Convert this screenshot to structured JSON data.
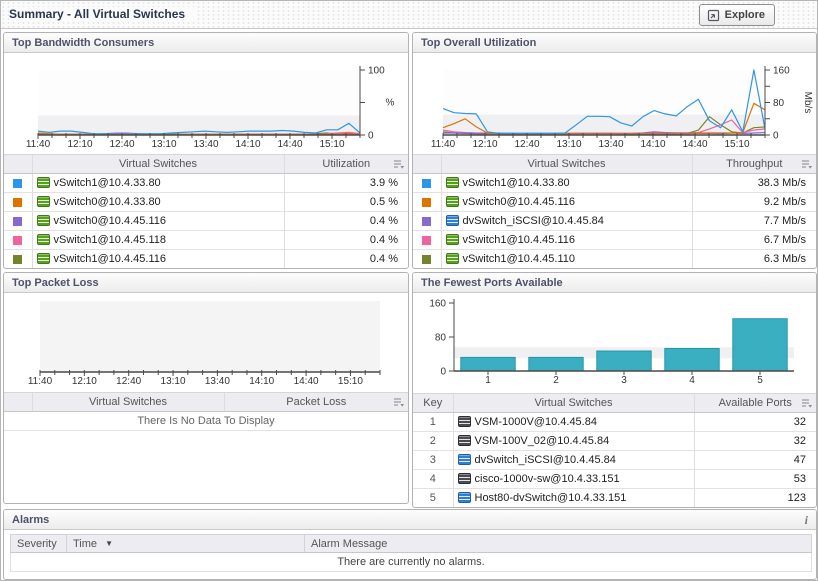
{
  "header": {
    "title": "Summary - All Virtual Switches",
    "explore_label": "Explore"
  },
  "panels": {
    "bandwidth": {
      "title": "Top Bandwidth Consumers",
      "headers": [
        "",
        "Virtual Switches",
        "Utilization"
      ],
      "rows": [
        {
          "swatch": "#2e96e8",
          "icon": "vswitch-green",
          "name": "vSwitch1@10.4.33.80",
          "value": "3.9 %"
        },
        {
          "swatch": "#df7300",
          "icon": "vswitch-green",
          "name": "vSwitch0@10.4.33.80",
          "value": "0.5 %"
        },
        {
          "swatch": "#8668ce",
          "icon": "vswitch-green",
          "name": "vSwitch0@10.4.45.116",
          "value": "0.4 %"
        },
        {
          "swatch": "#f0639c",
          "icon": "vswitch-green",
          "name": "vSwitch1@10.4.45.118",
          "value": "0.4 %"
        },
        {
          "swatch": "#77832c",
          "icon": "vswitch-green",
          "name": "vSwitch1@10.4.45.116",
          "value": "0.4 %"
        }
      ]
    },
    "utilization": {
      "title": "Top Overall Utilization",
      "headers": [
        "",
        "Virtual Switches",
        "Throughput"
      ],
      "rows": [
        {
          "swatch": "#2e96e8",
          "icon": "vswitch-green",
          "name": "vSwitch1@10.4.33.80",
          "value": "38.3 Mb/s"
        },
        {
          "swatch": "#df7300",
          "icon": "vswitch-green",
          "name": "vSwitch0@10.4.45.116",
          "value": "9.2 Mb/s"
        },
        {
          "swatch": "#8668ce",
          "icon": "dvswitch-blue",
          "name": "dvSwitch_iSCSI@10.4.45.84",
          "value": "7.7 Mb/s"
        },
        {
          "swatch": "#f0639c",
          "icon": "vswitch-green",
          "name": "vSwitch1@10.4.45.116",
          "value": "6.7 Mb/s"
        },
        {
          "swatch": "#77832c",
          "icon": "vswitch-green",
          "name": "vSwitch1@10.4.45.110",
          "value": "6.3 Mb/s"
        }
      ]
    },
    "packetloss": {
      "title": "Top Packet Loss",
      "headers": [
        "",
        "Virtual Switches",
        "Packet Loss"
      ],
      "empty_message": "There Is No Data To Display"
    },
    "ports": {
      "title": "The Fewest Ports Available",
      "headers": [
        "Key",
        "Virtual Switches",
        "Available Ports"
      ],
      "rows": [
        {
          "key": "1",
          "icon": "cisco-dark",
          "name": "VSM-1000V@10.4.45.84",
          "value": "32"
        },
        {
          "key": "2",
          "icon": "cisco-dark",
          "name": "VSM-100V_02@10.4.45.84",
          "value": "32"
        },
        {
          "key": "3",
          "icon": "dvswitch-blue",
          "name": "dvSwitch_iSCSI@10.4.45.84",
          "value": "47"
        },
        {
          "key": "4",
          "icon": "cisco-dark",
          "name": "cisco-1000v-sw@10.4.33.151",
          "value": "53"
        },
        {
          "key": "5",
          "icon": "dvswitch-blue",
          "name": "Host80-dvSwitch@10.4.33.151",
          "value": "123"
        }
      ]
    },
    "alarms": {
      "title": "Alarms",
      "info_label": "i",
      "headers": [
        "Severity",
        "Time",
        "Alarm Message"
      ],
      "empty_message": "There are currently no alarms."
    }
  },
  "chart_data": [
    {
      "id": "bw",
      "type": "line",
      "title": "Top Bandwidth Consumers",
      "ylabel": "%",
      "ylim": [
        0,
        100
      ],
      "band": [
        0,
        30
      ],
      "yticks": [
        {
          "v": 0,
          "label": "0"
        },
        {
          "v": 50,
          "label": ""
        },
        {
          "v": 100,
          "label": "100"
        }
      ],
      "x_tick_labels": [
        "11:40",
        "12:10",
        "12:40",
        "13:10",
        "13:40",
        "14:10",
        "14:40",
        "15:10"
      ],
      "x_range_minutes": 230,
      "x_tick_step_minutes": 30,
      "x_minor_step_minutes": 10,
      "series": [
        {
          "name": "vSwitch1@10.4.45.116",
          "color": "#77832c",
          "values": [
            1,
            1,
            1,
            1,
            1,
            1,
            1,
            1,
            1,
            1,
            1,
            1,
            1,
            1,
            1,
            1,
            1,
            1,
            1,
            1,
            1,
            1,
            1,
            1,
            1,
            2,
            3,
            1,
            3,
            2
          ]
        },
        {
          "name": "vSwitch1@10.4.45.118",
          "color": "#f0639c",
          "values": [
            2,
            1,
            1,
            1,
            1,
            1,
            2,
            3,
            3,
            2,
            1,
            1,
            1,
            1,
            1,
            1,
            1,
            1,
            1,
            1,
            1,
            1,
            1,
            1,
            1,
            1,
            2,
            3,
            4,
            2
          ]
        },
        {
          "name": "vSwitch0@10.4.45.116",
          "color": "#8668ce",
          "values": [
            1,
            1,
            1,
            1,
            1,
            1,
            1,
            1,
            1,
            1,
            1,
            1,
            1,
            1,
            1,
            1,
            1,
            1,
            1,
            1,
            1,
            1,
            1,
            1,
            1,
            1,
            1,
            1,
            1,
            1
          ]
        },
        {
          "name": "vSwitch0@10.4.33.80",
          "color": "#df7300",
          "values": [
            3,
            2,
            1,
            1,
            1,
            1,
            1,
            1,
            1,
            1,
            1,
            1,
            1,
            1,
            1,
            1,
            1,
            1,
            1,
            1,
            1,
            1,
            1,
            1,
            1,
            1,
            1,
            1,
            2,
            1
          ]
        },
        {
          "name": "vSwitch1@10.4.33.80",
          "color": "#2e96e8",
          "values": [
            6,
            4,
            6,
            6,
            4,
            2,
            2,
            2,
            2,
            2,
            2,
            2,
            3,
            4,
            5,
            6,
            5,
            4,
            5,
            6,
            6,
            6,
            7,
            6,
            4,
            3,
            8,
            8,
            18,
            3
          ]
        }
      ]
    },
    {
      "id": "ut",
      "type": "line",
      "title": "Top Overall Utilization",
      "ylabel": "Mb/s",
      "ylim": [
        0,
        160
      ],
      "band": [
        0,
        50
      ],
      "yticks": [
        {
          "v": 0,
          "label": "0"
        },
        {
          "v": 40,
          "label": ""
        },
        {
          "v": 80,
          "label": "80"
        },
        {
          "v": 120,
          "label": ""
        },
        {
          "v": 160,
          "label": "160"
        }
      ],
      "x_tick_labels": [
        "11:40",
        "12:10",
        "12:40",
        "13:10",
        "13:40",
        "14:10",
        "14:40",
        "15:10"
      ],
      "x_range_minutes": 230,
      "x_tick_step_minutes": 30,
      "x_minor_step_minutes": 10,
      "series": [
        {
          "name": "vSwitch1@10.4.45.110",
          "color": "#77832c",
          "values": [
            8,
            5,
            4,
            3,
            3,
            3,
            3,
            3,
            3,
            3,
            3,
            3,
            4,
            4,
            4,
            4,
            3,
            3,
            3,
            3,
            3,
            3,
            4,
            12,
            45,
            25,
            8,
            5,
            18,
            20
          ]
        },
        {
          "name": "vSwitch1@10.4.45.116",
          "color": "#f0639c",
          "values": [
            12,
            8,
            6,
            5,
            5,
            5,
            4,
            4,
            4,
            4,
            4,
            4,
            4,
            4,
            4,
            4,
            4,
            4,
            4,
            5,
            5,
            5,
            5,
            6,
            15,
            25,
            37,
            6,
            12,
            15
          ]
        },
        {
          "name": "dvSwitch_iSCSI@10.4.45.84",
          "color": "#8668ce",
          "values": [
            5,
            5,
            5,
            4,
            4,
            4,
            4,
            4,
            4,
            4,
            4,
            4,
            4,
            4,
            4,
            4,
            4,
            4,
            5,
            8,
            6,
            5,
            5,
            5,
            5,
            5,
            5,
            4,
            5,
            6
          ]
        },
        {
          "name": "vSwitch0@10.4.45.116",
          "color": "#df7300",
          "values": [
            18,
            28,
            40,
            20,
            5,
            3,
            3,
            3,
            3,
            3,
            3,
            3,
            3,
            3,
            3,
            3,
            3,
            3,
            3,
            3,
            3,
            3,
            3,
            4,
            4,
            3,
            5,
            6,
            78,
            62
          ]
        },
        {
          "name": "vSwitch1@10.4.33.80",
          "color": "#2e96e8",
          "values": [
            65,
            55,
            53,
            52,
            8,
            4,
            4,
            4,
            4,
            4,
            4,
            5,
            25,
            46,
            46,
            45,
            30,
            22,
            45,
            60,
            52,
            47,
            70,
            88,
            35,
            18,
            62,
            8,
            160,
            15
          ]
        }
      ]
    },
    {
      "id": "pl",
      "type": "line",
      "title": "Top Packet Loss",
      "ylabel": "",
      "ylim": [
        0,
        1
      ],
      "band": null,
      "empty": true,
      "yticks": [],
      "x_tick_labels": [
        "11:40",
        "12:10",
        "12:40",
        "13:10",
        "13:40",
        "14:10",
        "14:40",
        "15:10"
      ],
      "x_range_minutes": 230,
      "x_tick_step_minutes": 30,
      "x_minor_step_minutes": 10,
      "series": []
    },
    {
      "id": "fp",
      "type": "bar",
      "title": "The Fewest Ports Available",
      "ylabel": "",
      "ylim": [
        0,
        160
      ],
      "band": [
        30,
        56
      ],
      "yticks": [
        {
          "v": 0,
          "label": "0"
        },
        {
          "v": 80,
          "label": "80"
        },
        {
          "v": 160,
          "label": "160"
        }
      ],
      "categories": [
        "1",
        "2",
        "3",
        "4",
        "5"
      ],
      "values": [
        32,
        32,
        47,
        53,
        123
      ],
      "bar_color": "#3aafc1",
      "bar_border": "#2596a8"
    }
  ]
}
